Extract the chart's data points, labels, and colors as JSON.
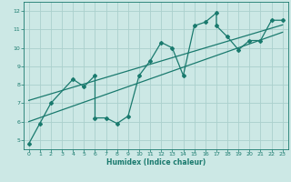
{
  "title": "",
  "xlabel": "Humidex (Indice chaleur)",
  "ylabel": "",
  "bg_color": "#cce8e5",
  "grid_color": "#aad0cc",
  "line_color": "#1a7a6e",
  "xlim": [
    -0.5,
    23.5
  ],
  "ylim": [
    4.5,
    12.5
  ],
  "xticks": [
    0,
    1,
    2,
    3,
    4,
    5,
    6,
    7,
    8,
    9,
    10,
    11,
    12,
    13,
    14,
    15,
    16,
    17,
    18,
    19,
    20,
    21,
    22,
    23
  ],
  "yticks": [
    5,
    6,
    7,
    8,
    9,
    10,
    11,
    12
  ],
  "data_line": {
    "x": [
      0,
      1,
      2,
      4,
      5,
      6,
      6,
      7,
      8,
      9,
      10,
      11,
      12,
      13,
      14,
      15,
      16,
      17,
      17,
      18,
      19,
      20,
      21,
      22,
      23
    ],
    "y": [
      4.8,
      5.9,
      7.0,
      8.3,
      7.9,
      8.5,
      6.2,
      6.2,
      5.9,
      6.3,
      8.5,
      9.3,
      10.3,
      10.0,
      8.5,
      11.2,
      11.4,
      11.9,
      11.2,
      10.6,
      9.9,
      10.4,
      10.4,
      11.5,
      11.5
    ]
  },
  "reg_line1": {
    "x": [
      0,
      23
    ],
    "y": [
      7.15,
      11.25
    ]
  },
  "reg_line2": {
    "x": [
      0,
      23
    ],
    "y": [
      6.0,
      10.85
    ]
  }
}
